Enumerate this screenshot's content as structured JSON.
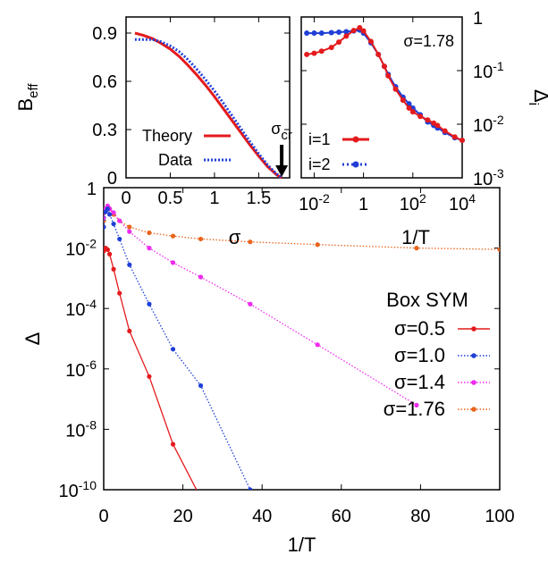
{
  "chart_data": [
    {
      "id": "beff",
      "type": "line",
      "ylabel": "B",
      "ylabel_sub": "eff",
      "xlabel": "σ",
      "xlim": [
        0,
        1.85
      ],
      "ylim": [
        0,
        1.0
      ],
      "xticks": [
        {
          "v": 0,
          "t": "0"
        },
        {
          "v": 0.5,
          "t": "0.5"
        },
        {
          "v": 1,
          "t": "1"
        },
        {
          "v": 1.5,
          "t": "1.5"
        }
      ],
      "yticks": [
        {
          "v": 0,
          "t": "0"
        },
        {
          "v": 0.3,
          "t": "0.3"
        },
        {
          "v": 0.6,
          "t": "0.6"
        },
        {
          "v": 0.9,
          "t": "0.9"
        }
      ],
      "annotation": {
        "text": "σ",
        "sub": "cr",
        "x": 1.76
      },
      "legend_position": "bottom-left",
      "series": [
        {
          "name": "Theory",
          "color": "#e41a1c",
          "style": "solid",
          "x": [
            0.1,
            0.2,
            0.3,
            0.4,
            0.5,
            0.6,
            0.7,
            0.8,
            0.9,
            1.0,
            1.1,
            1.2,
            1.3,
            1.4,
            1.5,
            1.6,
            1.7,
            1.76
          ],
          "y": [
            0.9,
            0.885,
            0.865,
            0.835,
            0.8,
            0.755,
            0.7,
            0.64,
            0.575,
            0.505,
            0.43,
            0.355,
            0.28,
            0.205,
            0.135,
            0.07,
            0.02,
            0.0
          ]
        },
        {
          "name": "Data",
          "color": "#1f3fd6",
          "style": "dotted",
          "x": [
            0.1,
            0.2,
            0.3,
            0.4,
            0.5,
            0.6,
            0.7,
            0.8,
            0.9,
            1.0,
            1.1,
            1.2,
            1.3,
            1.4,
            1.5,
            1.6,
            1.7,
            1.76
          ],
          "y": [
            0.86,
            0.86,
            0.86,
            0.845,
            0.82,
            0.785,
            0.735,
            0.675,
            0.61,
            0.54,
            0.465,
            0.385,
            0.305,
            0.225,
            0.15,
            0.08,
            0.025,
            0.0
          ]
        }
      ]
    },
    {
      "id": "delta_i",
      "type": "line",
      "ylabel": "Δ",
      "ylabel_sub": "i",
      "xlabel": "1/T",
      "xscale": "log",
      "yscale": "log",
      "xlim": [
        0.003,
        10000
      ],
      "ylim": [
        0.001,
        1
      ],
      "xticks": [
        {
          "v": 0.01,
          "t": "10",
          "e": "-2"
        },
        {
          "v": 1,
          "t": "1",
          "e": ""
        },
        {
          "v": 100,
          "t": "10",
          "e": "2"
        },
        {
          "v": 10000,
          "t": "10",
          "e": "4"
        }
      ],
      "yticks": [
        {
          "v": 1,
          "t": "1",
          "e": ""
        },
        {
          "v": 0.1,
          "t": "10",
          "e": "-1"
        },
        {
          "v": 0.01,
          "t": "10",
          "e": "-2"
        },
        {
          "v": 0.001,
          "t": "10",
          "e": "-3"
        }
      ],
      "annotation": {
        "text": "σ=1.78"
      },
      "legend_position": "bottom-left",
      "series": [
        {
          "name": "i=1",
          "color": "#e41a1c",
          "marker": "circle",
          "x": [
            0.005,
            0.01,
            0.02,
            0.05,
            0.1,
            0.2,
            0.4,
            0.7,
            1,
            2,
            4,
            7,
            10,
            20,
            40,
            70,
            100,
            200,
            400,
            700,
            1000,
            2000,
            5000,
            10000
          ],
          "y": [
            0.2,
            0.21,
            0.23,
            0.27,
            0.34,
            0.44,
            0.56,
            0.63,
            0.55,
            0.35,
            0.2,
            0.12,
            0.08,
            0.045,
            0.028,
            0.02,
            0.017,
            0.014,
            0.012,
            0.0105,
            0.0095,
            0.0075,
            0.0058,
            0.005
          ]
        },
        {
          "name": "i=2",
          "color": "#1f3fd6",
          "marker": "circle",
          "x": [
            0.005,
            0.01,
            0.02,
            0.05,
            0.1,
            0.2,
            0.4,
            0.7,
            1,
            2,
            4,
            7,
            10,
            20,
            40,
            70,
            100,
            200,
            400,
            700,
            1000,
            2000,
            5000,
            10000
          ],
          "y": [
            0.5,
            0.5,
            0.5,
            0.51,
            0.52,
            0.53,
            0.55,
            0.57,
            0.5,
            0.33,
            0.2,
            0.12,
            0.085,
            0.05,
            0.032,
            0.024,
            0.02,
            0.015,
            0.011,
            0.0095,
            0.0085,
            0.007,
            0.0056,
            0.005
          ]
        }
      ]
    },
    {
      "id": "delta",
      "type": "line",
      "title": "Box SYM",
      "ylabel": "Δ",
      "xlabel": "1/T",
      "yscale": "log",
      "xlim": [
        0,
        100
      ],
      "ylim": [
        1e-10,
        1
      ],
      "xticks": [
        {
          "v": 0,
          "t": "0"
        },
        {
          "v": 20,
          "t": "20"
        },
        {
          "v": 40,
          "t": "40"
        },
        {
          "v": 60,
          "t": "60"
        },
        {
          "v": 80,
          "t": "80"
        },
        {
          "v": 100,
          "t": "100"
        }
      ],
      "yticks": [
        {
          "v": 1,
          "t": "1",
          "e": ""
        },
        {
          "v": 0.01,
          "t": "10",
          "e": "-2"
        },
        {
          "v": 0.0001,
          "t": "10",
          "e": "-4"
        },
        {
          "v": 1e-06,
          "t": "10",
          "e": "-6"
        },
        {
          "v": 1e-08,
          "t": "10",
          "e": "-8"
        },
        {
          "v": 1e-10,
          "t": "10",
          "e": "-10"
        }
      ],
      "legend_position": "right",
      "series": [
        {
          "name": "σ=0.5",
          "color": "#e41a1c",
          "style": "solid",
          "x": [
            0,
            0.5,
            1,
            1.5,
            2.5,
            4,
            6.5,
            11.5,
            17.5,
            25
          ],
          "y": [
            0.0079,
            0.01,
            0.0089,
            0.0063,
            0.002,
            0.00032,
            1.8e-05,
            5.6e-07,
            3.2e-09,
            4e-11
          ]
        },
        {
          "name": "σ=1.0",
          "color": "#1f3fd6",
          "style": "dotted",
          "x": [
            0,
            0.5,
            1,
            1.5,
            2.5,
            4,
            6.5,
            11.5,
            17.5,
            24.5,
            37
          ],
          "y": [
            0.05,
            0.16,
            0.2,
            0.13,
            0.063,
            0.02,
            0.0028,
            0.00014,
            4.5e-06,
            2.8e-07,
            1e-10
          ]
        },
        {
          "name": "σ=1.4",
          "color": "#ee2aee",
          "style": "dotted",
          "x": [
            0,
            0.5,
            1,
            1.5,
            2.5,
            4,
            6.5,
            11.5,
            17.5,
            24.5,
            37,
            54,
            79
          ],
          "y": [
            0.1,
            0.2,
            0.25,
            0.2,
            0.15,
            0.08,
            0.035,
            0.01,
            0.0033,
            0.0011,
            0.00014,
            6.3e-06,
            6.3e-08
          ]
        },
        {
          "name": "σ=1.76",
          "color": "#e8641b",
          "style": "dotted",
          "x": [
            0,
            0.5,
            1,
            1.5,
            2.5,
            4,
            6.5,
            11.5,
            17.5,
            24.5,
            37,
            54,
            79,
            100
          ],
          "y": [
            0.08,
            0.18,
            0.22,
            0.2,
            0.13,
            0.08,
            0.05,
            0.032,
            0.025,
            0.02,
            0.016,
            0.013,
            0.01,
            0.009
          ]
        }
      ]
    }
  ]
}
